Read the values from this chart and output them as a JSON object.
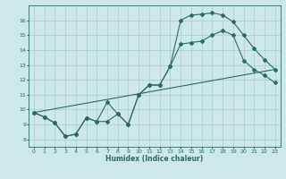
{
  "title": "",
  "xlabel": "Humidex (Indice chaleur)",
  "bg_color": "#cce8e8",
  "grid_color": "#aacccc",
  "line_color": "#2a6b5a",
  "xlim": [
    -0.5,
    23.5
  ],
  "ylim": [
    7.5,
    17.0
  ],
  "yticks": [
    8,
    9,
    10,
    11,
    12,
    13,
    14,
    15,
    16
  ],
  "xticks": [
    0,
    1,
    2,
    3,
    4,
    5,
    6,
    7,
    8,
    9,
    10,
    11,
    12,
    13,
    14,
    15,
    16,
    17,
    18,
    19,
    20,
    21,
    22,
    23
  ],
  "line1_x": [
    0,
    1,
    2,
    3,
    4,
    5,
    6,
    7,
    8,
    9,
    10,
    11,
    12,
    13,
    14,
    15,
    16,
    17,
    18,
    19,
    20,
    21,
    22,
    23
  ],
  "line1_y": [
    9.8,
    9.5,
    9.1,
    8.2,
    8.35,
    9.45,
    9.2,
    10.5,
    9.7,
    9.0,
    11.0,
    11.65,
    11.65,
    12.9,
    16.0,
    16.35,
    16.4,
    16.5,
    16.35,
    15.9,
    15.0,
    14.1,
    13.35,
    12.7
  ],
  "line2_x": [
    0,
    1,
    2,
    3,
    4,
    5,
    6,
    7,
    8,
    9,
    10,
    11,
    12,
    13,
    14,
    15,
    16,
    17,
    18,
    19,
    20,
    21,
    22,
    23
  ],
  "line2_y": [
    9.8,
    9.5,
    9.1,
    8.2,
    8.35,
    9.45,
    9.2,
    9.2,
    9.7,
    9.0,
    11.0,
    11.65,
    11.65,
    12.9,
    14.4,
    14.5,
    14.6,
    15.0,
    15.3,
    15.0,
    13.3,
    12.7,
    12.3,
    11.8
  ],
  "line3_x": [
    0,
    23
  ],
  "line3_y": [
    9.8,
    12.7
  ]
}
